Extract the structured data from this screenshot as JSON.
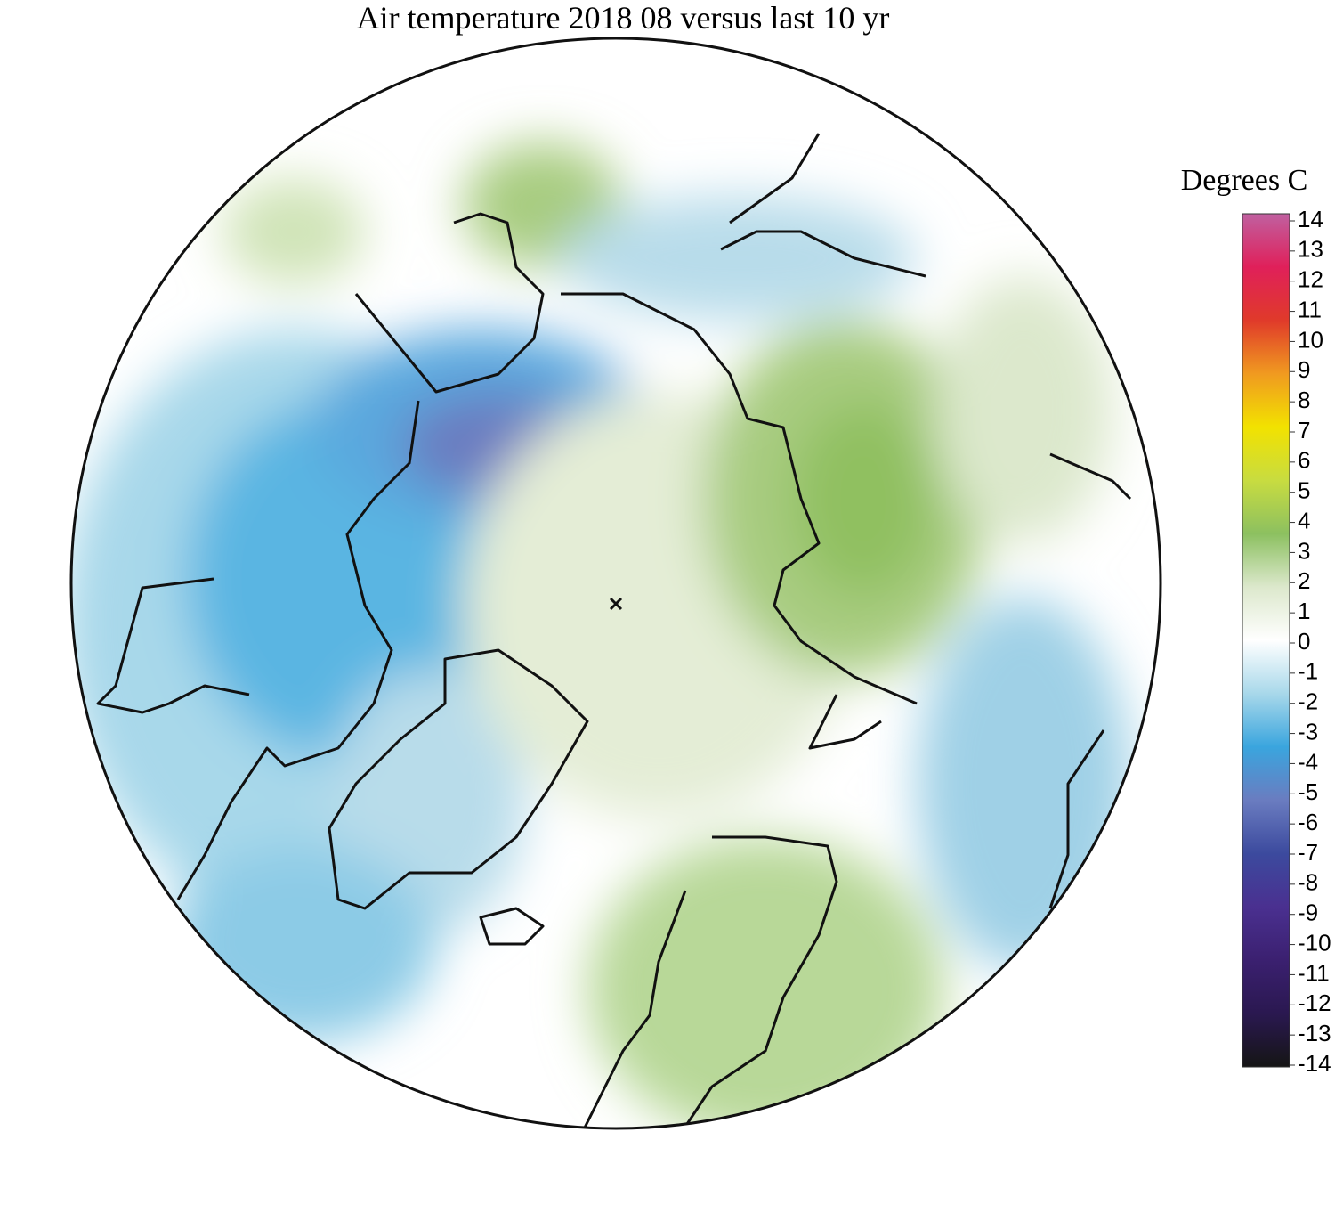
{
  "title": "Air temperature 2018 08 versus last 10 yr",
  "colorbar": {
    "label": "Degrees C",
    "range": [
      -14,
      14
    ],
    "ticks": [
      -14,
      -13,
      -12,
      -11,
      -10,
      -9,
      -8,
      -7,
      -6,
      -5,
      -4,
      -3,
      -2,
      -1,
      0,
      1,
      2,
      3,
      4,
      5,
      6,
      7,
      8,
      9,
      10,
      11,
      12,
      13,
      14
    ],
    "colors": [
      "#151515",
      "#2a1850",
      "#3b2070",
      "#4a3090",
      "#3c4a9e",
      "#6a7cc0",
      "#3aa5de",
      "#a8d8ea",
      "#ffffff",
      "#dce8cc",
      "#8cc060",
      "#c8dc40",
      "#f2e200",
      "#f09a20",
      "#e03a2a",
      "#e0205a",
      "#c060a0"
    ]
  }
}
